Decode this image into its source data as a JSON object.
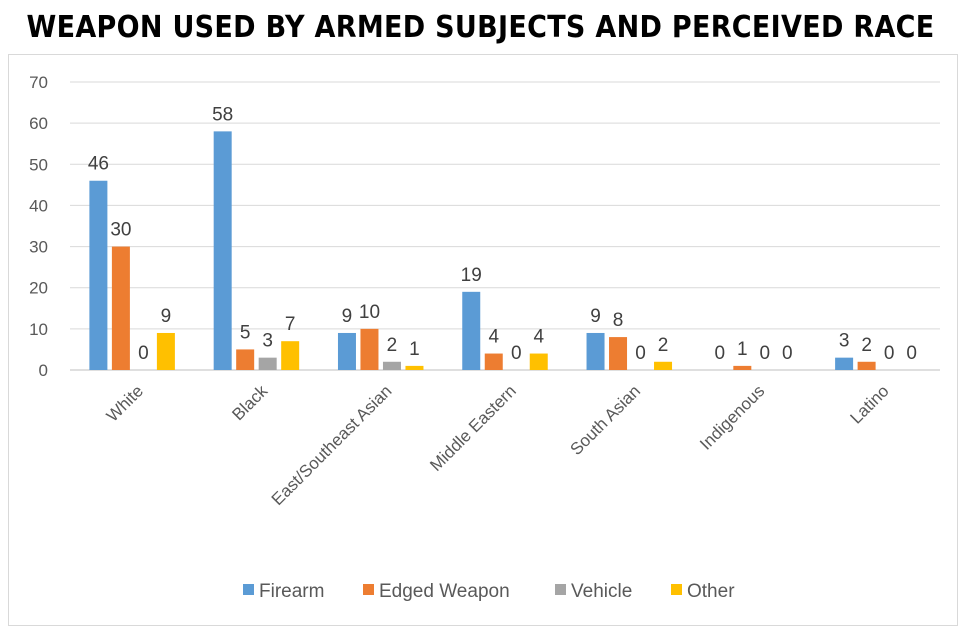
{
  "chart_data": {
    "type": "bar",
    "title": "WEAPON USED BY ARMED SUBJECTS AND PERCEIVED RACE",
    "categories": [
      "White",
      "Black",
      "East/Southeast Asian",
      "Middle Eastern",
      "South Asian",
      "Indigenous",
      "Latino"
    ],
    "series": [
      {
        "name": "Firearm",
        "color": "#5b9bd5",
        "values": [
          46,
          58,
          9,
          19,
          9,
          0,
          3
        ]
      },
      {
        "name": "Edged Weapon",
        "color": "#ed7d31",
        "values": [
          30,
          5,
          10,
          4,
          8,
          1,
          2
        ]
      },
      {
        "name": "Vehicle",
        "color": "#a5a5a5",
        "values": [
          0,
          3,
          2,
          0,
          0,
          0,
          0
        ]
      },
      {
        "name": "Other",
        "color": "#ffc000",
        "values": [
          9,
          7,
          1,
          4,
          2,
          0,
          0
        ]
      }
    ],
    "ylim": [
      0,
      70
    ],
    "yticks": [
      0,
      10,
      20,
      30,
      40,
      50,
      60,
      70
    ],
    "grid": true,
    "legend": "bottom",
    "data_labels": [
      [
        "46",
        "30",
        "0",
        "9"
      ],
      [
        "58",
        "5",
        "3",
        "7"
      ],
      [
        "9",
        "10",
        "2",
        "1"
      ],
      [
        "19",
        "4",
        "0",
        "4"
      ],
      [
        "9",
        "8",
        "0",
        "2"
      ],
      [
        "0",
        "1",
        "0",
        "0"
      ],
      [
        "3",
        "2",
        "0",
        "0"
      ]
    ]
  }
}
